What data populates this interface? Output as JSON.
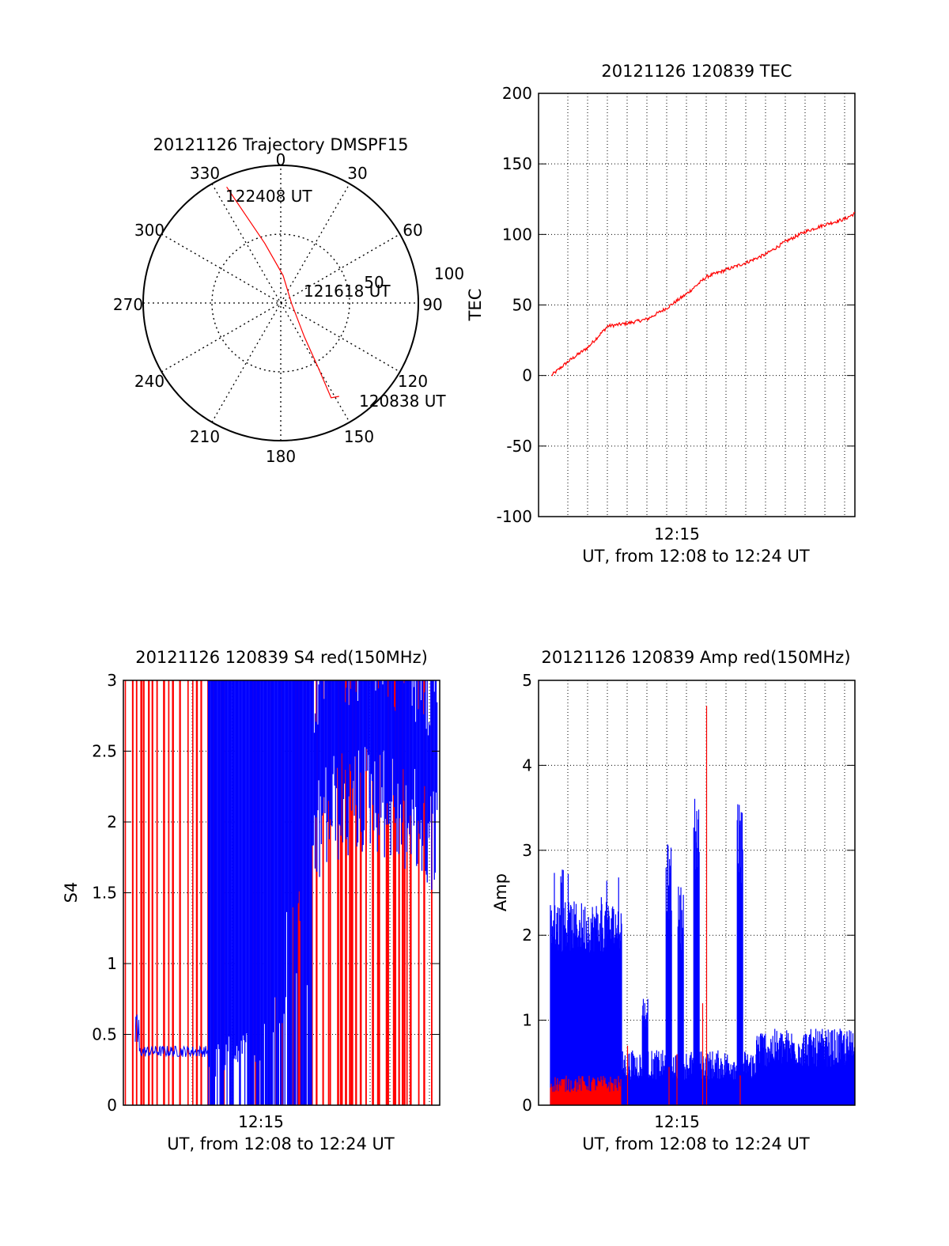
{
  "colors": {
    "red": "#ff0000",
    "blue": "#0000ff",
    "axis": "#000000",
    "grid": "#000000"
  },
  "polar": {
    "title": "20121126 Trajectory DMSPF15",
    "angle_labels": [
      "0",
      "30",
      "60",
      "90",
      "120",
      "150",
      "180",
      "210",
      "240",
      "270",
      "300",
      "330"
    ],
    "radius_labels": [
      "50",
      "100"
    ],
    "trajectory_labels": {
      "start": "120838 UT",
      "mid": "121618 UT",
      "end": "122408 UT"
    }
  },
  "chart_data": [
    {
      "type": "scatter",
      "title": "20121126 Trajectory DMSPF15",
      "coords": "polar (azimuth deg, elevation-style radius; 0 at centre, 100 at rim)",
      "series": [
        {
          "color": "#ff0000",
          "points": [
            {
              "az": 335,
              "r": 93,
              "time": "122408 UT"
            },
            {
              "az": 338,
              "r": 70
            },
            {
              "az": 345,
              "r": 45
            },
            {
              "az": 5,
              "r": 20
            },
            {
              "az": 95,
              "r": 8,
              "time": "121618 UT"
            },
            {
              "az": 145,
              "r": 30
            },
            {
              "az": 150,
              "r": 55
            },
            {
              "az": 152,
              "r": 78
            },
            {
              "az": 148,
              "r": 80,
              "time": "120838 UT"
            }
          ]
        }
      ]
    },
    {
      "type": "line",
      "title": "20121126 120839 TEC",
      "xlabel": "UT, from 12:08 to 12:24 UT",
      "ylabel": "TEC",
      "xtick_label": "12:15",
      "xlim": [
        "12:08",
        "12:24"
      ],
      "ylim": [
        -100,
        200
      ],
      "yticks": [
        200,
        150,
        100,
        50,
        0,
        -50,
        -100
      ],
      "grid": true,
      "series": [
        {
          "color": "#ff0000",
          "x": [
            "12:08:39",
            "12:09:30",
            "12:10:30",
            "12:11:30",
            "12:12:30",
            "12:13:30",
            "12:14:30",
            "12:15:30",
            "12:16:30",
            "12:17:30",
            "12:18:30",
            "12:19:30",
            "12:20:30",
            "12:21:30",
            "12:22:30",
            "12:23:30",
            "12:24:00"
          ],
          "y": [
            0,
            10,
            20,
            35,
            37,
            40,
            48,
            58,
            70,
            75,
            80,
            86,
            95,
            102,
            107,
            111,
            115
          ]
        }
      ]
    },
    {
      "type": "line",
      "title": "20121126 120839 S4 red(150MHz)",
      "xlabel": "UT, from 12:08 to 12:24 UT",
      "ylabel": "S4",
      "xtick_label": "12:15",
      "xlim": [
        "12:08",
        "12:24"
      ],
      "ylim": [
        0,
        3
      ],
      "yticks": [
        3,
        2.5,
        2,
        1.5,
        1,
        0.5,
        0
      ],
      "grid": true,
      "series": [
        {
          "color": "#0000ff",
          "x_min": [
            0.6,
            1.5,
            2.5,
            3.5,
            4.5,
            5.5,
            6.5,
            7.5,
            8.5,
            9.5,
            10.5,
            11.5,
            12.5,
            13.5,
            14.5,
            15.5
          ],
          "y": [
            0.38,
            0.4,
            0.38,
            0.4,
            0.45,
            0.6,
            0.6,
            1.0,
            1.8,
            2.2,
            2.5,
            2.5,
            2.6,
            2.5,
            2.4,
            2.3
          ]
        },
        {
          "color": "#ff0000",
          "note": "vertical spikes across 0 to 3"
        }
      ]
    },
    {
      "type": "line",
      "title": "20121126 120839 Amp red(150MHz)",
      "xlabel": "UT, from 12:08 to 12:24 UT",
      "ylabel": "Amp",
      "xtick_label": "12:15",
      "xlim": [
        "12:08",
        "12:24"
      ],
      "ylim": [
        0,
        5
      ],
      "yticks": [
        5,
        4,
        3,
        2,
        1,
        0
      ],
      "grid": true,
      "series": [
        {
          "color": "#0000ff",
          "x_min": [
            0.6,
            1.5,
            2.5,
            3.5,
            4.0,
            5.5,
            6.5,
            7.2,
            8.0,
            9.0,
            10.2,
            11.0,
            12.0,
            13.0,
            14.0,
            15.5
          ],
          "y": [
            2.2,
            2.4,
            2.3,
            2.2,
            0.3,
            1.3,
            3.1,
            2.6,
            3.8,
            0.4,
            3.6,
            0.7,
            0.9,
            0.8,
            0.9,
            1.5
          ]
        },
        {
          "color": "#ff0000",
          "x_min": [
            0.6,
            2.0,
            3.5,
            4.5,
            6.5,
            8.5,
            10.0,
            13.0
          ],
          "y": [
            0.3,
            0.25,
            0.3,
            0.7,
            0.4,
            4.7,
            0.4,
            0.3
          ]
        }
      ]
    }
  ]
}
